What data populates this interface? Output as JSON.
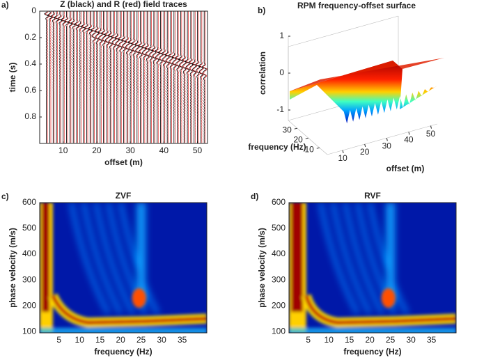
{
  "chart_data": [
    {
      "type": "traces",
      "panel": "a)",
      "title": "Z (black) and R (red) field traces",
      "xlabel": "offset (m)",
      "ylabel": "time (s)",
      "xlim": [
        3,
        53
      ],
      "xticks": [
        10,
        20,
        30,
        40,
        50
      ],
      "ylim": [
        0,
        1
      ],
      "yticks": [
        0,
        0.2,
        0.4,
        0.6,
        0.8
      ],
      "y_reversed": true,
      "series": [
        {
          "name": "Z",
          "color": "#000000"
        },
        {
          "name": "R",
          "color": "#e00000"
        }
      ]
    },
    {
      "type": "surface3d",
      "panel": "b)",
      "title": "RPM frequency-offset surface",
      "xlabel": "frequency (Hz)",
      "ylabel": "offset (m)",
      "zlabel": "correlation",
      "xlim": [
        3,
        38
      ],
      "xticks": [
        10,
        20,
        30
      ],
      "ylim": [
        3,
        53
      ],
      "yticks": [
        10,
        20,
        30,
        40,
        50
      ],
      "zlim": [
        -1,
        1
      ],
      "zticks": [
        -1,
        0,
        1
      ],
      "colormap": "jet"
    },
    {
      "type": "heatmap",
      "panel": "c)",
      "title": "ZVF",
      "xlabel": "frequency (Hz)",
      "ylabel": "phase velocity (m/s)",
      "xlim": [
        0.3,
        41
      ],
      "xticks": [
        5,
        10,
        15,
        20,
        25,
        30,
        35
      ],
      "ylim": [
        95,
        600
      ],
      "yticks": [
        100,
        200,
        300,
        400,
        500,
        600
      ],
      "colormap": "jet"
    },
    {
      "type": "heatmap",
      "panel": "d)",
      "title": "RVF",
      "xlabel": "frequency (Hz)",
      "ylabel": "phase velocity (m/s)",
      "xlim": [
        0.3,
        41
      ],
      "xticks": [
        5,
        10,
        15,
        20,
        25,
        30,
        35
      ],
      "ylim": [
        95,
        600
      ],
      "yticks": [
        100,
        200,
        300,
        400,
        500,
        600
      ],
      "colormap": "jet"
    }
  ]
}
